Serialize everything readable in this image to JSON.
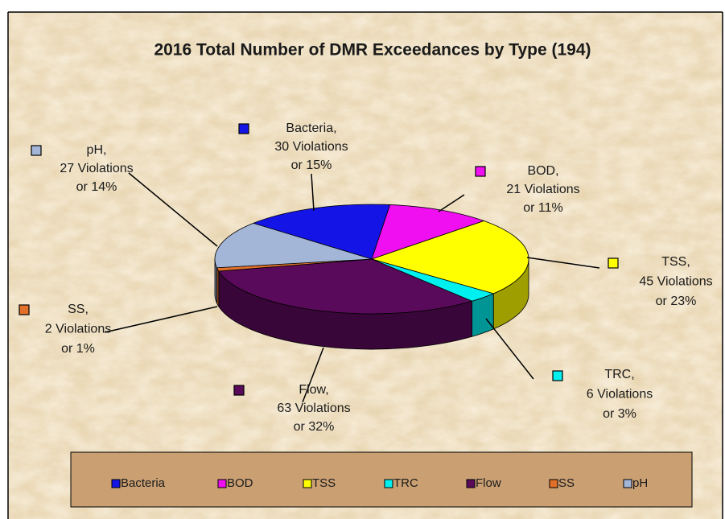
{
  "chart_data": {
    "type": "pie3d",
    "title": "2016 Total Number of DMR Exceedances by Type (194)",
    "categories": [
      "Bacteria",
      "BOD",
      "TSS",
      "TRC",
      "Flow",
      "SS",
      "pH"
    ],
    "values": [
      30,
      21,
      45,
      6,
      63,
      2,
      27
    ],
    "value_labels": [
      [
        "Bacteria,",
        "30 Violations",
        "or 15%"
      ],
      [
        "BOD,",
        "21 Violations",
        "or 11%"
      ],
      [
        "TSS,",
        "45 Violations",
        "or 23%"
      ],
      [
        "TRC,",
        "6 Violations",
        "or 3%"
      ],
      [
        "Flow,",
        "63 Violations",
        "or 32%"
      ],
      [
        "SS,",
        "2 Violations",
        "or 1%"
      ],
      [
        "pH,",
        "27 Violations",
        "or 14%"
      ]
    ],
    "colors": [
      "#1414e6",
      "#f00ff0",
      "#ffff00",
      "#00f0f0",
      "#5a0a5a",
      "#e0702a",
      "#a3b6d8"
    ],
    "legend": "bottom"
  }
}
